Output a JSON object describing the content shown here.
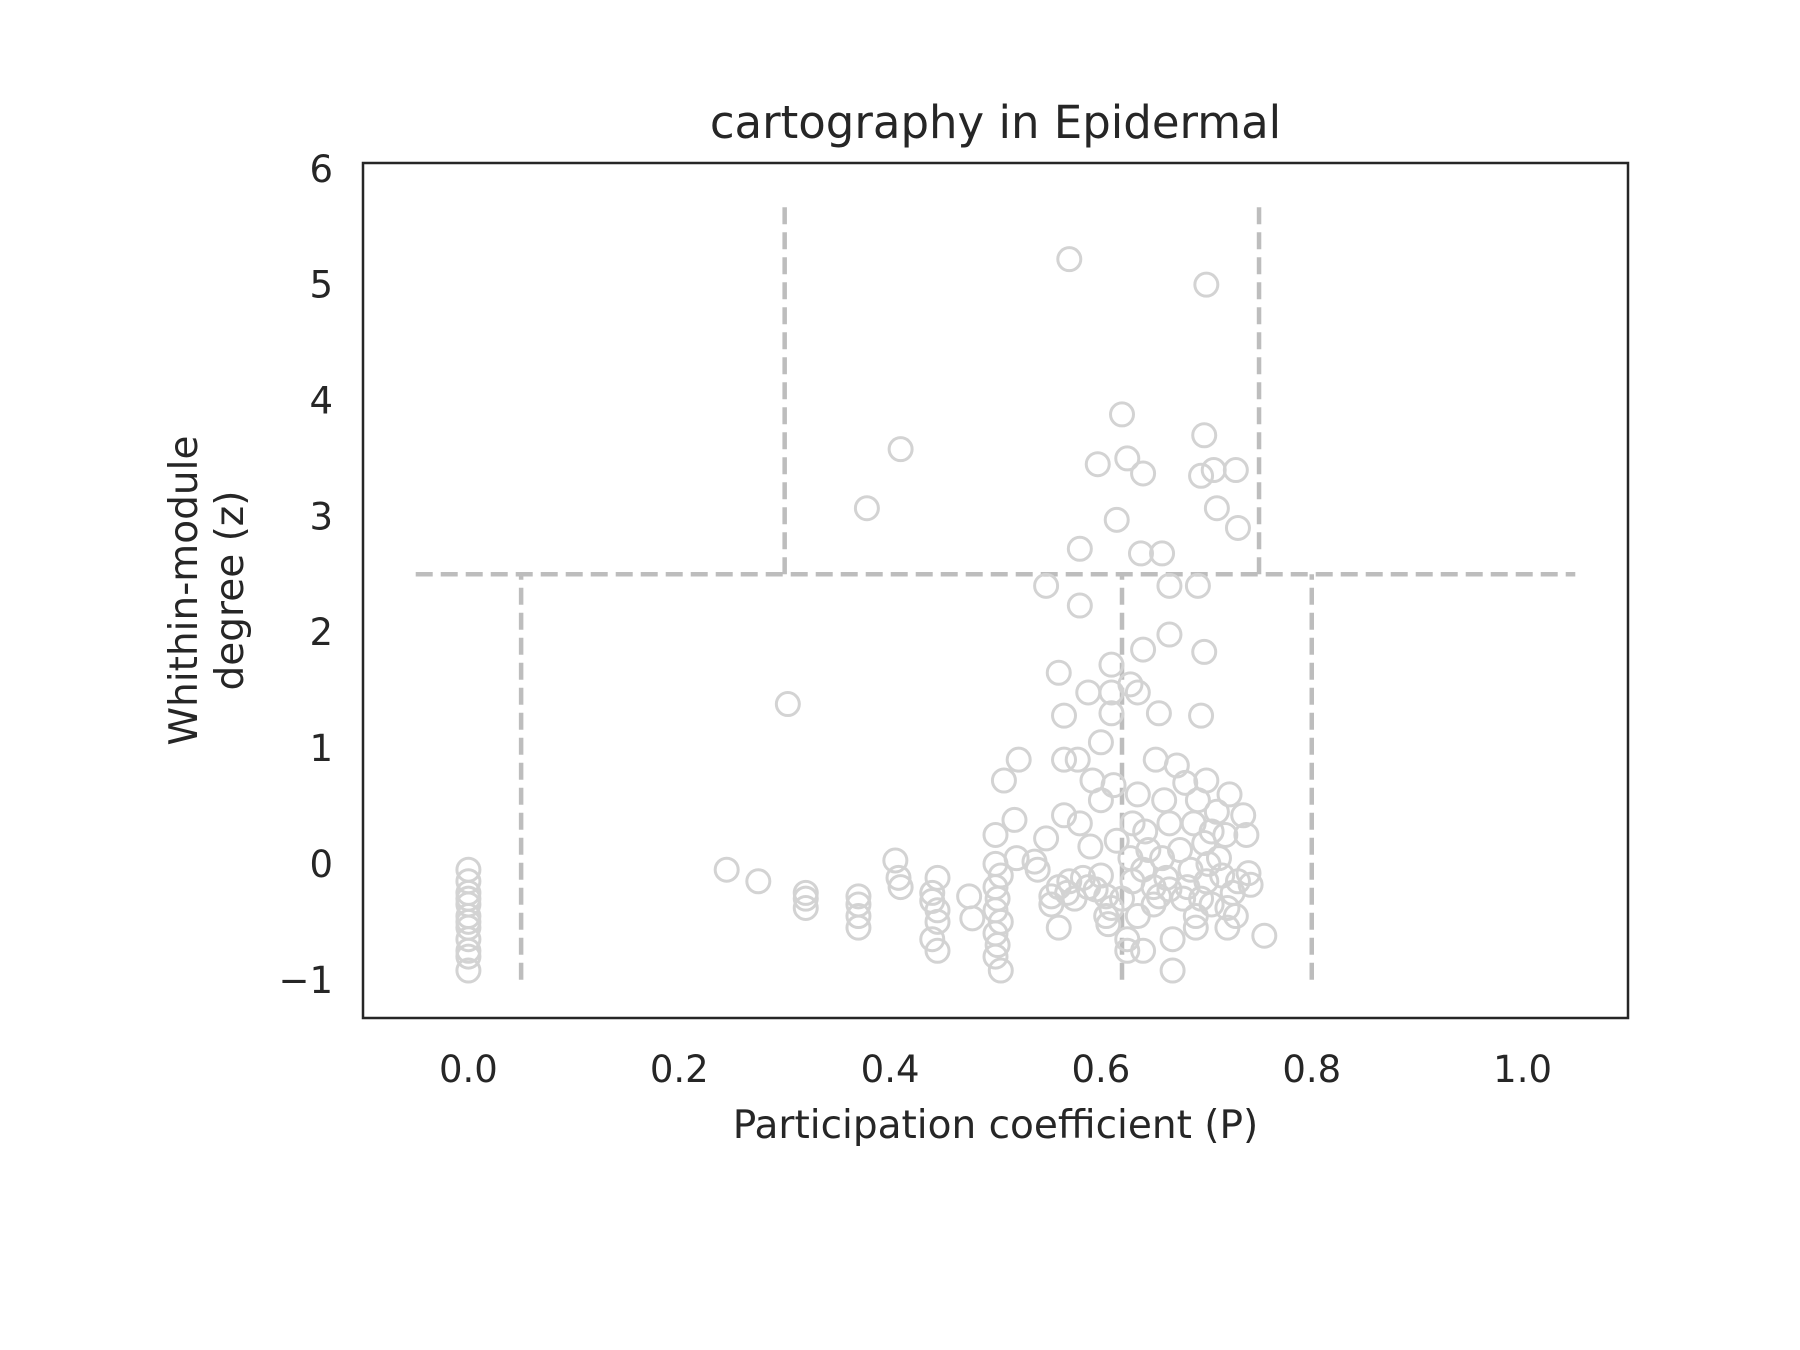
{
  "chart_data": {
    "type": "scatter",
    "title": "cartography in Epidermal",
    "xlabel": "Participation coefficient (P)",
    "ylabel_lines": [
      "Whithin-module",
      "degree (z)"
    ],
    "xlim": [
      -0.1,
      1.1
    ],
    "ylim": [
      -1.33,
      6.05
    ],
    "xticks": [
      "0.0",
      "0.2",
      "0.4",
      "0.6",
      "0.8",
      "1.0"
    ],
    "xtick_values": [
      0.0,
      0.2,
      0.4,
      0.6,
      0.8,
      1.0
    ],
    "yticks": [
      "−1",
      "0",
      "1",
      "2",
      "3",
      "4",
      "5",
      "6"
    ],
    "ytick_values": [
      -1,
      0,
      1,
      2,
      3,
      4,
      5,
      6
    ],
    "grid": false,
    "marker_color": "#d3d3d3",
    "divider_color": "#bdbdbd",
    "role_boundaries": [
      {
        "x": [
          -0.05,
          1.05
        ],
        "y": [
          2.5,
          2.5
        ]
      },
      {
        "x": [
          0.05,
          0.05
        ],
        "y": [
          -1.0,
          2.5
        ]
      },
      {
        "x": [
          0.62,
          0.62
        ],
        "y": [
          -1.0,
          2.5
        ]
      },
      {
        "x": [
          0.8,
          0.8
        ],
        "y": [
          -1.0,
          2.5
        ]
      },
      {
        "x": [
          0.3,
          0.3
        ],
        "y": [
          2.5,
          5.7
        ]
      },
      {
        "x": [
          0.75,
          0.75
        ],
        "y": [
          2.5,
          5.7
        ]
      }
    ],
    "points": [
      [
        0.0,
        -0.05
      ],
      [
        0.0,
        -0.15
      ],
      [
        0.0,
        -0.25
      ],
      [
        0.0,
        -0.3
      ],
      [
        0.0,
        -0.35
      ],
      [
        0.0,
        -0.45
      ],
      [
        0.0,
        -0.5
      ],
      [
        0.0,
        -0.55
      ],
      [
        0.0,
        -0.65
      ],
      [
        0.0,
        -0.75
      ],
      [
        0.0,
        -0.8
      ],
      [
        0.0,
        -0.92
      ],
      [
        0.245,
        -0.05
      ],
      [
        0.275,
        -0.15
      ],
      [
        0.32,
        -0.25
      ],
      [
        0.32,
        -0.3
      ],
      [
        0.32,
        -0.38
      ],
      [
        0.37,
        -0.28
      ],
      [
        0.37,
        -0.35
      ],
      [
        0.37,
        -0.45
      ],
      [
        0.37,
        -0.55
      ],
      [
        0.405,
        0.03
      ],
      [
        0.408,
        -0.12
      ],
      [
        0.41,
        -0.2
      ],
      [
        0.445,
        -0.12
      ],
      [
        0.44,
        -0.25
      ],
      [
        0.44,
        -0.32
      ],
      [
        0.445,
        -0.4
      ],
      [
        0.445,
        -0.5
      ],
      [
        0.44,
        -0.65
      ],
      [
        0.445,
        -0.75
      ],
      [
        0.475,
        -0.28
      ],
      [
        0.478,
        -0.47
      ],
      [
        0.5,
        0.25
      ],
      [
        0.5,
        0.0
      ],
      [
        0.505,
        -0.1
      ],
      [
        0.5,
        -0.2
      ],
      [
        0.502,
        -0.3
      ],
      [
        0.5,
        -0.4
      ],
      [
        0.505,
        -0.5
      ],
      [
        0.5,
        -0.6
      ],
      [
        0.502,
        -0.7
      ],
      [
        0.5,
        -0.8
      ],
      [
        0.505,
        -0.92
      ],
      [
        0.508,
        0.72
      ],
      [
        0.518,
        0.38
      ],
      [
        0.52,
        0.05
      ],
      [
        0.522,
        0.9
      ],
      [
        0.537,
        0.02
      ],
      [
        0.54,
        -0.05
      ],
      [
        0.548,
        0.22
      ],
      [
        0.553,
        -0.28
      ],
      [
        0.553,
        -0.35
      ],
      [
        0.56,
        -0.2
      ],
      [
        0.56,
        -0.55
      ],
      [
        0.565,
        0.42
      ],
      [
        0.568,
        -0.25
      ],
      [
        0.57,
        -0.15
      ],
      [
        0.575,
        -0.3
      ],
      [
        0.58,
        0.35
      ],
      [
        0.583,
        -0.12
      ],
      [
        0.588,
        -0.2
      ],
      [
        0.59,
        0.15
      ],
      [
        0.592,
        0.72
      ],
      [
        0.595,
        -0.22
      ],
      [
        0.6,
        -0.1
      ],
      [
        0.6,
        0.55
      ],
      [
        0.605,
        -0.28
      ],
      [
        0.605,
        -0.45
      ],
      [
        0.607,
        -0.52
      ],
      [
        0.61,
        -0.38
      ],
      [
        0.612,
        0.68
      ],
      [
        0.615,
        0.2
      ],
      [
        0.62,
        -0.3
      ],
      [
        0.625,
        -0.65
      ],
      [
        0.625,
        -0.75
      ],
      [
        0.628,
        0.05
      ],
      [
        0.63,
        -0.15
      ],
      [
        0.63,
        0.35
      ],
      [
        0.635,
        0.6
      ],
      [
        0.635,
        -0.45
      ],
      [
        0.64,
        -0.75
      ],
      [
        0.64,
        -0.05
      ],
      [
        0.642,
        0.28
      ],
      [
        0.645,
        0.12
      ],
      [
        0.65,
        -0.2
      ],
      [
        0.65,
        -0.35
      ],
      [
        0.652,
        0.9
      ],
      [
        0.655,
        -0.28
      ],
      [
        0.658,
        0.05
      ],
      [
        0.66,
        0.55
      ],
      [
        0.662,
        -0.12
      ],
      [
        0.665,
        0.35
      ],
      [
        0.665,
        -0.22
      ],
      [
        0.668,
        -0.65
      ],
      [
        0.668,
        -0.92
      ],
      [
        0.672,
        0.85
      ],
      [
        0.675,
        0.12
      ],
      [
        0.678,
        -0.3
      ],
      [
        0.68,
        0.7
      ],
      [
        0.682,
        -0.2
      ],
      [
        0.685,
        -0.05
      ],
      [
        0.688,
        0.35
      ],
      [
        0.69,
        -0.45
      ],
      [
        0.69,
        -0.55
      ],
      [
        0.692,
        0.55
      ],
      [
        0.695,
        -0.3
      ],
      [
        0.698,
        0.18
      ],
      [
        0.7,
        0.72
      ],
      [
        0.7,
        -0.15
      ],
      [
        0.702,
        0.0
      ],
      [
        0.705,
        -0.35
      ],
      [
        0.705,
        0.28
      ],
      [
        0.71,
        0.45
      ],
      [
        0.712,
        0.05
      ],
      [
        0.715,
        -0.1
      ],
      [
        0.718,
        0.25
      ],
      [
        0.72,
        -0.55
      ],
      [
        0.72,
        -0.38
      ],
      [
        0.722,
        0.6
      ],
      [
        0.725,
        -0.25
      ],
      [
        0.728,
        -0.45
      ],
      [
        0.73,
        -0.15
      ],
      [
        0.735,
        0.42
      ],
      [
        0.738,
        0.25
      ],
      [
        0.74,
        -0.08
      ],
      [
        0.742,
        -0.18
      ],
      [
        0.755,
        -0.62
      ],
      [
        0.303,
        1.38
      ],
      [
        0.56,
        1.65
      ],
      [
        0.565,
        1.28
      ],
      [
        0.565,
        0.9
      ],
      [
        0.578,
        0.9
      ],
      [
        0.588,
        1.48
      ],
      [
        0.6,
        1.05
      ],
      [
        0.61,
        1.72
      ],
      [
        0.61,
        1.48
      ],
      [
        0.61,
        1.3
      ],
      [
        0.628,
        1.55
      ],
      [
        0.635,
        1.48
      ],
      [
        0.64,
        1.85
      ],
      [
        0.655,
        1.3
      ],
      [
        0.665,
        1.98
      ],
      [
        0.698,
        1.83
      ],
      [
        0.695,
        1.28
      ],
      [
        0.548,
        2.4
      ],
      [
        0.58,
        2.23
      ],
      [
        0.58,
        2.72
      ],
      [
        0.638,
        2.68
      ],
      [
        0.658,
        2.68
      ],
      [
        0.665,
        2.4
      ],
      [
        0.692,
        2.4
      ],
      [
        0.378,
        3.07
      ],
      [
        0.41,
        3.58
      ],
      [
        0.597,
        3.45
      ],
      [
        0.615,
        2.97
      ],
      [
        0.62,
        3.88
      ],
      [
        0.625,
        3.5
      ],
      [
        0.64,
        3.37
      ],
      [
        0.695,
        3.35
      ],
      [
        0.698,
        3.7
      ],
      [
        0.707,
        3.4
      ],
      [
        0.71,
        3.07
      ],
      [
        0.728,
        3.4
      ],
      [
        0.73,
        2.9
      ],
      [
        0.57,
        5.22
      ],
      [
        0.7,
        5.0
      ]
    ]
  }
}
